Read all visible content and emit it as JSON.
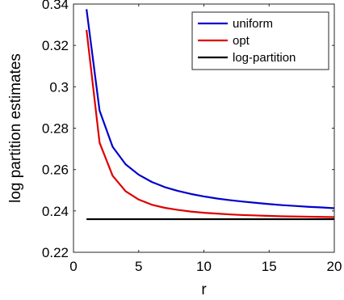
{
  "chart_data": {
    "type": "line",
    "title": "",
    "xlabel": "r",
    "ylabel": "log partition estimates",
    "xlim": [
      0,
      20
    ],
    "ylim": [
      0.22,
      0.34
    ],
    "xticks": [
      0,
      5,
      10,
      15,
      20
    ],
    "xtick_labels": [
      "0",
      "5",
      "10",
      "15",
      "20"
    ],
    "yticks": [
      0.22,
      0.24,
      0.26,
      0.28,
      0.3,
      0.32,
      0.34
    ],
    "ytick_labels": [
      "0.22",
      "0.24",
      "0.26",
      "0.28",
      "0.3",
      "0.32",
      "0.34"
    ],
    "grid": false,
    "legend_position": "top-right",
    "x": [
      1,
      2,
      3,
      4,
      5,
      6,
      7,
      8,
      9,
      10,
      11,
      12,
      13,
      14,
      15,
      16,
      17,
      18,
      19,
      20
    ],
    "series": [
      {
        "name": "uniform",
        "color": "#0000cc",
        "values": [
          0.3375,
          0.2885,
          0.271,
          0.2625,
          0.2575,
          0.254,
          0.2515,
          0.2497,
          0.2482,
          0.247,
          0.246,
          0.2452,
          0.2445,
          0.2439,
          0.2433,
          0.2428,
          0.2424,
          0.242,
          0.2417,
          0.2413
        ]
      },
      {
        "name": "opt",
        "color": "#dd0000",
        "values": [
          0.3275,
          0.273,
          0.257,
          0.2495,
          0.2455,
          0.243,
          0.2415,
          0.2405,
          0.2397,
          0.2391,
          0.2387,
          0.2383,
          0.238,
          0.2378,
          0.2376,
          0.2374,
          0.2373,
          0.2372,
          0.2371,
          0.237
        ]
      },
      {
        "name": "log-partition",
        "color": "#000000",
        "values": [
          0.236,
          0.236,
          0.236,
          0.236,
          0.236,
          0.236,
          0.236,
          0.236,
          0.236,
          0.236,
          0.236,
          0.236,
          0.236,
          0.236,
          0.236,
          0.236,
          0.236,
          0.236,
          0.236,
          0.236
        ]
      }
    ]
  }
}
